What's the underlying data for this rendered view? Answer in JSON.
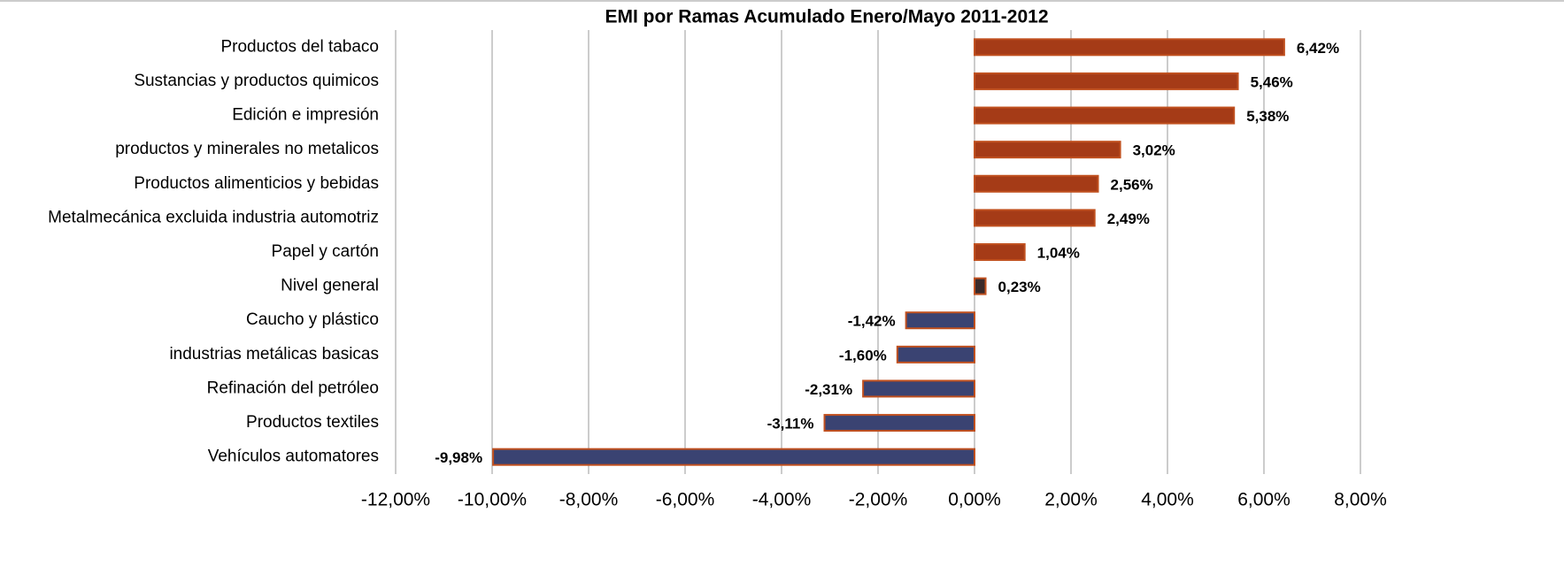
{
  "chart_data": {
    "type": "hbar",
    "title": "EMI por Ramas Acumulado Enero/Mayo 2011-2012",
    "categories": [
      "Productos del tabaco",
      "Sustancias y productos quimicos",
      "Edición e impresión",
      "productos y minerales no metalicos",
      "Productos alimenticios y bebidas",
      "Metalmecánica excluida industria automotriz",
      "Papel y cartón",
      "Nivel general",
      "Caucho y plástico",
      "industrias metálicas basicas",
      "Refinación del petróleo",
      "Productos textiles",
      "Vehículos automatores"
    ],
    "values": [
      6.42,
      5.46,
      5.38,
      3.02,
      2.56,
      2.49,
      1.04,
      0.23,
      -1.42,
      -1.6,
      -2.31,
      -3.11,
      -9.98
    ],
    "value_labels": [
      "6,42%",
      "5,46%",
      "5,38%",
      "3,02%",
      "2,56%",
      "2,49%",
      "1,04%",
      "0,23%",
      "-1,42%",
      "-1,60%",
      "-2,31%",
      "-3,11%",
      "-9,98%"
    ],
    "colors": [
      "#a53b17",
      "#a53b17",
      "#a53b17",
      "#a53b17",
      "#a53b17",
      "#a53b17",
      "#a53b17",
      "#3b2a2a",
      "#3a4372",
      "#3a4372",
      "#3a4372",
      "#3a4372",
      "#3a4372"
    ],
    "border_color": "#c0501f",
    "xlim": [
      -12,
      8
    ],
    "xticks": [
      {
        "value": -12,
        "label": "-12,00%"
      },
      {
        "value": -10,
        "label": "-10,00%"
      },
      {
        "value": -8,
        "label": "-8,00%"
      },
      {
        "value": -6,
        "label": "-6,00%"
      },
      {
        "value": -4,
        "label": "-4,00%"
      },
      {
        "value": -2,
        "label": "-2,00%"
      },
      {
        "value": 0,
        "label": "0,00%"
      },
      {
        "value": 2,
        "label": "2,00%"
      },
      {
        "value": 4,
        "label": "4,00%"
      },
      {
        "value": 6,
        "label": "6,00%"
      },
      {
        "value": 8,
        "label": "8,00%"
      }
    ],
    "grid": true
  }
}
